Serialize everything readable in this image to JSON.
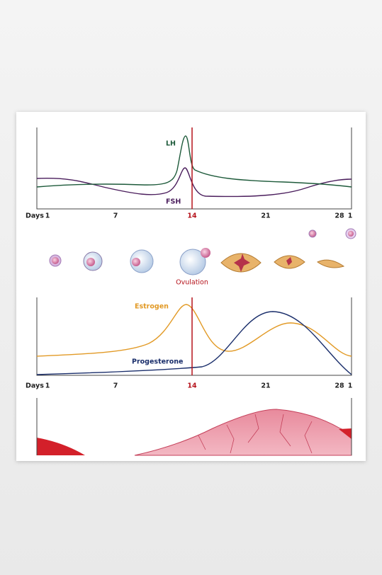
{
  "top_chart": {
    "lh_label": "LH",
    "fsh_label": "FSH"
  },
  "top_axis": {
    "prefix": "Days",
    "ticks": [
      "1",
      "7",
      "14",
      "21",
      "28",
      "1"
    ]
  },
  "ovulation_label": "Ovulation",
  "bottom_chart": {
    "estrogen_label": "Estrogen",
    "progesterone_label": "Progesterone"
  },
  "bottom_axis": {
    "prefix": "Days",
    "ticks": [
      "1",
      "7",
      "14",
      "21",
      "28",
      "1"
    ]
  }
}
